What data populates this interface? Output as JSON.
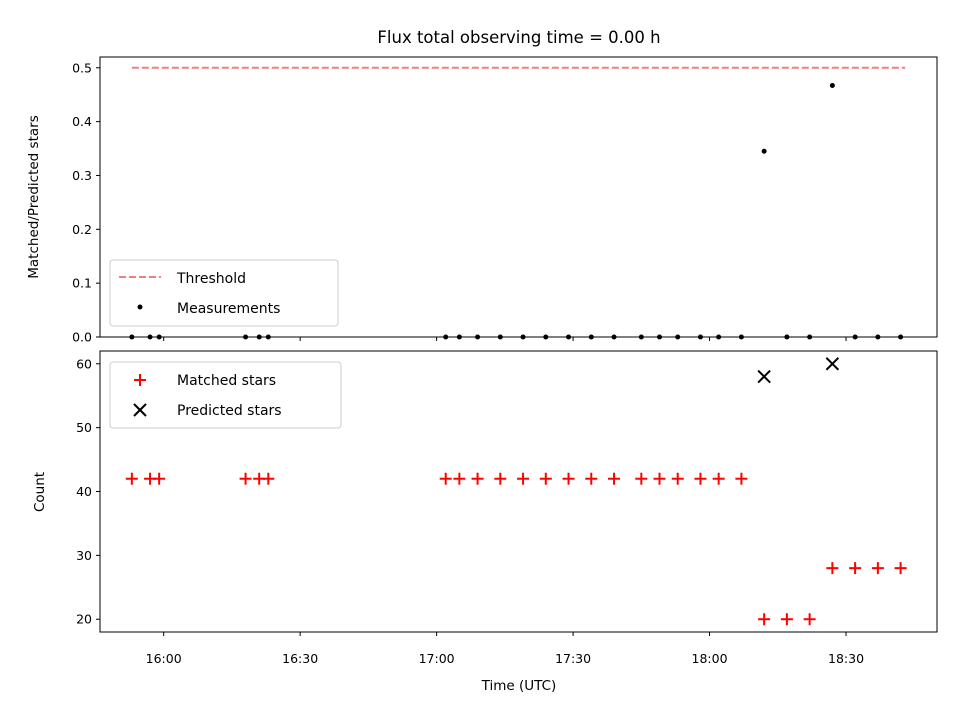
{
  "chart_data": [
    {
      "type": "scatter",
      "title": "Flux total observing time = 0.00 h",
      "xlabel": "",
      "ylabel": "Matched/Predicted stars",
      "xlim": [
        "15:46",
        "18:50"
      ],
      "ylim": [
        0,
        0.52
      ],
      "yticks": [
        0.0,
        0.1,
        0.2,
        0.3,
        0.4,
        0.5
      ],
      "yticklabels": [
        "0.0",
        "0.1",
        "0.2",
        "0.3",
        "0.4",
        "0.5"
      ],
      "legend_position": "lower-left",
      "grid": false,
      "threshold": {
        "name": "Threshold",
        "value": 0.5,
        "x_range": [
          "15:53",
          "18:43"
        ],
        "color": "#f08080",
        "style": "dashed"
      },
      "series": [
        {
          "name": "Measurements",
          "marker": "dot",
          "color": "#000000",
          "x": [
            "15:53",
            "15:57",
            "15:59",
            "16:18",
            "16:21",
            "16:23",
            "17:02",
            "17:05",
            "17:09",
            "17:14",
            "17:19",
            "17:24",
            "17:29",
            "17:34",
            "17:39",
            "17:45",
            "17:49",
            "17:53",
            "17:58",
            "18:02",
            "18:07",
            "18:12",
            "18:17",
            "18:22",
            "18:27",
            "18:32",
            "18:37",
            "18:42"
          ],
          "y": [
            0,
            0,
            0,
            0,
            0,
            0,
            0,
            0,
            0,
            0,
            0,
            0,
            0,
            0,
            0,
            0,
            0,
            0,
            0,
            0,
            0,
            0.345,
            0,
            0,
            0.467,
            0,
            0,
            0
          ]
        }
      ]
    },
    {
      "type": "scatter",
      "title": "",
      "xlabel": "Time (UTC)",
      "ylabel": "Count",
      "xlim": [
        "15:46",
        "18:50"
      ],
      "ylim": [
        18,
        62
      ],
      "yticks": [
        20,
        30,
        40,
        50,
        60
      ],
      "yticklabels": [
        "20",
        "30",
        "40",
        "50",
        "60"
      ],
      "xticks": [
        "16:00",
        "16:30",
        "17:00",
        "17:30",
        "18:00",
        "18:30"
      ],
      "xticklabels": [
        "16:00",
        "16:30",
        "17:00",
        "17:30",
        "18:00",
        "18:30"
      ],
      "legend_position": "upper-left",
      "grid": false,
      "series": [
        {
          "name": "Matched stars",
          "marker": "plus",
          "color": "#ff0000",
          "x": [
            "15:53",
            "15:57",
            "15:59",
            "16:18",
            "16:21",
            "16:23",
            "17:02",
            "17:05",
            "17:09",
            "17:14",
            "17:19",
            "17:24",
            "17:29",
            "17:34",
            "17:39",
            "17:45",
            "17:49",
            "17:53",
            "17:58",
            "18:02",
            "18:07",
            "18:12",
            "18:17",
            "18:22",
            "18:27",
            "18:32",
            "18:37",
            "18:42"
          ],
          "y": [
            42,
            42,
            42,
            42,
            42,
            42,
            42,
            42,
            42,
            42,
            42,
            42,
            42,
            42,
            42,
            42,
            42,
            42,
            42,
            42,
            42,
            20,
            20,
            20,
            28,
            28,
            28,
            28
          ]
        },
        {
          "name": "Predicted stars",
          "marker": "x",
          "color": "#000000",
          "x": [
            "18:12",
            "18:27"
          ],
          "y": [
            58,
            60
          ]
        }
      ]
    }
  ]
}
